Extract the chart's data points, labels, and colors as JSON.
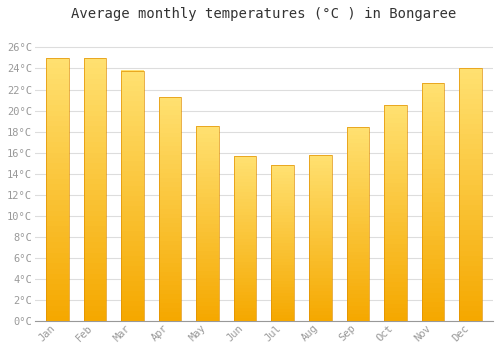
{
  "title": "Average monthly temperatures (°C ) in Bongaree",
  "months": [
    "Jan",
    "Feb",
    "Mar",
    "Apr",
    "May",
    "Jun",
    "Jul",
    "Aug",
    "Sep",
    "Oct",
    "Nov",
    "Dec"
  ],
  "values": [
    25.0,
    25.0,
    23.8,
    21.3,
    18.5,
    15.7,
    14.8,
    15.8,
    18.4,
    20.5,
    22.6,
    24.0
  ],
  "bar_color_bottom": "#F5A800",
  "bar_color_top": "#FFE070",
  "bar_edge_color": "#E09000",
  "ylim": [
    0,
    28
  ],
  "yticks": [
    0,
    2,
    4,
    6,
    8,
    10,
    12,
    14,
    16,
    18,
    20,
    22,
    24,
    26
  ],
  "ytick_labels": [
    "0°C",
    "2°C",
    "4°C",
    "6°C",
    "8°C",
    "10°C",
    "12°C",
    "14°C",
    "16°C",
    "18°C",
    "20°C",
    "22°C",
    "24°C",
    "26°C"
  ],
  "bg_color": "#ffffff",
  "plot_bg_color": "#ffffff",
  "grid_color": "#dddddd",
  "title_fontsize": 10,
  "tick_fontsize": 7.5,
  "bar_width": 0.6,
  "font_family": "monospace",
  "tick_color": "#999999",
  "title_color": "#333333"
}
